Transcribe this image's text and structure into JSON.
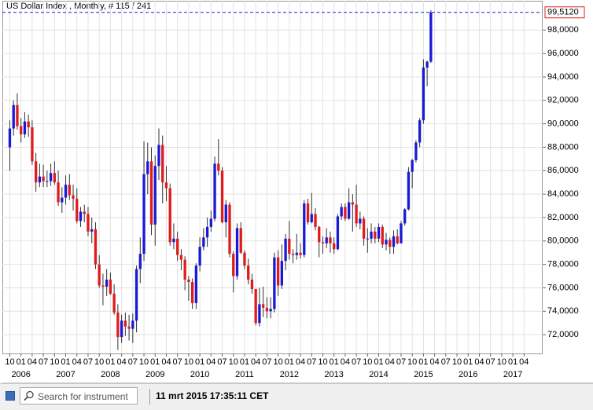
{
  "chart_data": {
    "type": "candlestick",
    "title": "US Dollar Index , Monthly, # 115 / 241",
    "x": [
      "2005-10",
      "2005-11",
      "2005-12",
      "2006-01",
      "2006-02",
      "2006-03",
      "2006-04",
      "2006-05",
      "2006-06",
      "2006-07",
      "2006-08",
      "2006-09",
      "2006-10",
      "2006-11",
      "2006-12",
      "2007-01",
      "2007-02",
      "2007-03",
      "2007-04",
      "2007-05",
      "2007-06",
      "2007-07",
      "2007-08",
      "2007-09",
      "2007-10",
      "2007-11",
      "2007-12",
      "2008-01",
      "2008-02",
      "2008-03",
      "2008-04",
      "2008-05",
      "2008-06",
      "2008-07",
      "2008-08",
      "2008-09",
      "2008-10",
      "2008-11",
      "2008-12",
      "2009-01",
      "2009-02",
      "2009-03",
      "2009-04",
      "2009-05",
      "2009-06",
      "2009-07",
      "2009-08",
      "2009-09",
      "2009-10",
      "2009-11",
      "2009-12",
      "2010-01",
      "2010-02",
      "2010-03",
      "2010-04",
      "2010-05",
      "2010-06",
      "2010-07",
      "2010-08",
      "2010-09",
      "2010-10",
      "2010-11",
      "2010-12",
      "2011-01",
      "2011-02",
      "2011-03",
      "2011-04",
      "2011-05",
      "2011-06",
      "2011-07",
      "2011-08",
      "2011-09",
      "2011-10",
      "2011-11",
      "2011-12",
      "2012-01",
      "2012-02",
      "2012-03",
      "2012-04",
      "2012-05",
      "2012-06",
      "2012-07",
      "2012-08",
      "2012-09",
      "2012-10",
      "2012-11",
      "2012-12",
      "2013-01",
      "2013-02",
      "2013-03",
      "2013-04",
      "2013-05",
      "2013-06",
      "2013-07",
      "2013-08",
      "2013-09",
      "2013-10",
      "2013-11",
      "2013-12",
      "2014-01",
      "2014-02",
      "2014-03",
      "2014-04",
      "2014-05",
      "2014-06",
      "2014-07",
      "2014-08",
      "2014-09",
      "2014-10",
      "2014-11",
      "2014-12",
      "2015-01",
      "2015-02",
      "2015-03"
    ],
    "open": [
      88.0,
      89.6,
      91.6,
      89.8,
      89.1,
      90.2,
      89.7,
      86.8,
      85.0,
      85.5,
      85.1,
      85.1,
      85.8,
      85.0,
      83.3,
      83.7,
      84.8,
      83.9,
      83.6,
      81.7,
      82.5,
      82.3,
      80.8,
      81.0,
      78.0,
      76.2,
      76.1,
      76.7,
      75.5,
      73.9,
      71.8,
      73.2,
      72.7,
      72.5,
      73.2,
      77.6,
      78.9,
      85.7,
      86.8,
      81.4,
      86.4,
      88.2,
      85.0,
      84.5,
      79.9,
      80.2,
      78.8,
      78.4,
      76.7,
      76.5,
      74.7,
      77.9,
      79.5,
      80.3,
      81.2,
      81.9,
      86.6,
      86.0,
      81.6,
      83.1,
      78.9,
      77.0,
      81.1,
      79.0,
      77.9,
      76.7,
      75.9,
      73.0,
      74.6,
      74.3,
      74.0,
      74.2,
      78.6,
      76.2,
      78.3,
      80.2,
      78.9,
      78.8,
      79.0,
      78.8,
      83.2,
      81.6,
      82.3,
      81.2,
      79.9,
      79.8,
      80.3,
      79.8,
      79.3,
      82.1,
      82.9,
      81.9,
      83.3,
      83.1,
      81.5,
      81.9,
      80.2,
      80.2,
      80.8,
      80.2,
      81.2,
      79.7,
      80.1,
      79.5,
      80.4,
      79.8,
      81.5,
      82.7,
      85.9,
      86.9,
      88.4,
      90.3,
      94.8,
      95.3
    ],
    "high": [
      90.3,
      92.0,
      92.6,
      90.5,
      91.0,
      90.8,
      90.3,
      87.5,
      86.6,
      86.5,
      86.0,
      86.6,
      86.8,
      86.0,
      84.6,
      85.6,
      85.7,
      84.8,
      84.5,
      82.9,
      83.1,
      82.9,
      82.0,
      81.6,
      78.8,
      77.2,
      77.6,
      77.3,
      76.3,
      74.6,
      73.7,
      73.9,
      73.7,
      73.8,
      77.9,
      80.3,
      88.5,
      88.4,
      88.0,
      87.3,
      89.6,
      89.0,
      86.4,
      84.9,
      81.5,
      80.8,
      79.3,
      78.7,
      77.0,
      76.8,
      78.1,
      80.3,
      81.1,
      82.0,
      82.6,
      87.2,
      88.7,
      86.3,
      83.5,
      83.3,
      79.1,
      81.5,
      81.6,
      79.2,
      78.5,
      77.2,
      75.9,
      76.0,
      76.1,
      75.2,
      75.2,
      79.0,
      79.2,
      79.7,
      80.6,
      81.7,
      79.3,
      80.6,
      79.8,
      83.5,
      83.6,
      84.1,
      82.8,
      81.3,
      80.4,
      81.1,
      80.8,
      80.3,
      82.3,
      83.2,
      83.2,
      84.5,
      84.0,
      84.8,
      82.5,
      82.1,
      81.1,
      81.5,
      81.2,
      81.5,
      81.4,
      80.7,
      80.3,
      80.9,
      81.0,
      81.7,
      82.8,
      86.3,
      87.0,
      88.6,
      90.5,
      95.5,
      95.4,
      99.7
    ],
    "low": [
      86.0,
      89.0,
      89.5,
      88.4,
      88.8,
      88.9,
      86.5,
      84.2,
      84.6,
      84.6,
      84.6,
      84.7,
      84.8,
      83.0,
      82.4,
      83.1,
      83.5,
      82.6,
      81.5,
      81.2,
      81.6,
      80.4,
      79.8,
      77.6,
      76.0,
      74.5,
      75.3,
      75.4,
      73.7,
      70.7,
      71.3,
      71.9,
      71.5,
      71.3,
      72.2,
      76.4,
      78.3,
      84.0,
      80.5,
      79.6,
      85.2,
      83.2,
      83.4,
      79.6,
      79.3,
      78.3,
      77.5,
      75.8,
      74.9,
      74.2,
      74.2,
      77.4,
      79.2,
      79.5,
      80.8,
      81.7,
      85.6,
      81.5,
      80.3,
      78.6,
      75.6,
      76.7,
      78.9,
      77.6,
      76.3,
      75.5,
      72.8,
      72.7,
      73.5,
      73.4,
      73.4,
      73.9,
      75.3,
      75.9,
      77.5,
      78.4,
      78.1,
      78.4,
      78.5,
      78.6,
      81.4,
      81.5,
      80.9,
      78.6,
      78.9,
      79.4,
      79.0,
      78.9,
      79.2,
      81.8,
      81.7,
      81.8,
      80.8,
      81.2,
      81.0,
      79.6,
      79.0,
      79.8,
      79.8,
      79.9,
      79.4,
      79.2,
      78.9,
      78.9,
      79.7,
      79.8,
      81.3,
      82.6,
      84.5,
      86.7,
      88.0,
      90.0,
      93.2,
      95.2
    ],
    "close": [
      89.6,
      91.6,
      89.8,
      89.1,
      90.2,
      89.7,
      86.8,
      85.0,
      85.5,
      85.1,
      85.1,
      85.8,
      85.0,
      83.3,
      83.7,
      84.8,
      83.9,
      83.6,
      81.7,
      82.5,
      82.3,
      80.8,
      81.0,
      78.0,
      76.2,
      76.1,
      76.7,
      75.5,
      73.9,
      71.8,
      73.2,
      72.7,
      72.5,
      73.2,
      77.6,
      78.9,
      85.7,
      86.8,
      81.4,
      86.4,
      88.2,
      85.0,
      84.5,
      79.9,
      80.2,
      78.8,
      78.4,
      76.7,
      76.5,
      74.7,
      77.9,
      79.5,
      80.3,
      81.2,
      81.9,
      86.6,
      86.0,
      81.6,
      83.1,
      78.9,
      77.0,
      81.1,
      79.0,
      77.9,
      76.7,
      75.9,
      73.0,
      74.6,
      74.3,
      74.0,
      74.2,
      78.6,
      76.2,
      78.3,
      80.2,
      78.9,
      78.8,
      79.0,
      78.8,
      83.2,
      81.6,
      82.3,
      81.2,
      79.9,
      79.8,
      80.3,
      79.8,
      79.3,
      82.1,
      82.9,
      81.9,
      83.3,
      83.1,
      81.5,
      81.9,
      80.2,
      80.2,
      80.8,
      80.2,
      81.2,
      79.7,
      80.1,
      79.5,
      80.4,
      79.8,
      81.5,
      82.7,
      85.9,
      86.9,
      88.4,
      90.3,
      94.8,
      95.3,
      99.512
    ],
    "up_color": "#1a1ad6",
    "down_color": "#e01b1b",
    "current": {
      "value": 99.512,
      "label": "99,5120"
    },
    "current_color": "#1a1ad6",
    "ylim": [
      70.4,
      100.5
    ],
    "yticks": [
      {
        "value": 72,
        "label": "72,0000"
      },
      {
        "value": 74,
        "label": "74,0000"
      },
      {
        "value": 76,
        "label": "76,0000"
      },
      {
        "value": 78,
        "label": "78,0000"
      },
      {
        "value": 80,
        "label": "80,0000"
      },
      {
        "value": 82,
        "label": "82,0000"
      },
      {
        "value": 84,
        "label": "84,0000"
      },
      {
        "value": 86,
        "label": "86,0000"
      },
      {
        "value": 88,
        "label": "88,0000"
      },
      {
        "value": 90,
        "label": "90,0000"
      },
      {
        "value": 92,
        "label": "92,0000"
      },
      {
        "value": 94,
        "label": "94,0000"
      },
      {
        "value": 96,
        "label": "96,0000"
      },
      {
        "value": 98,
        "label": "98,0000"
      }
    ],
    "xlim": [
      "2005-08",
      "2017-09"
    ],
    "month_ticks": [
      {
        "value": "2005-10",
        "label": "10"
      },
      {
        "value": "2006-01",
        "label": "01"
      },
      {
        "value": "2006-04",
        "label": "04"
      },
      {
        "value": "2006-07",
        "label": "07"
      },
      {
        "value": "2006-10",
        "label": "10"
      },
      {
        "value": "2007-01",
        "label": "01"
      },
      {
        "value": "2007-04",
        "label": "04"
      },
      {
        "value": "2007-07",
        "label": "07"
      },
      {
        "value": "2007-10",
        "label": "10"
      },
      {
        "value": "2008-01",
        "label": "01"
      },
      {
        "value": "2008-04",
        "label": "04"
      },
      {
        "value": "2008-07",
        "label": "07"
      },
      {
        "value": "2008-10",
        "label": "10"
      },
      {
        "value": "2009-01",
        "label": "01"
      },
      {
        "value": "2009-04",
        "label": "04"
      },
      {
        "value": "2009-07",
        "label": "07"
      },
      {
        "value": "2009-10",
        "label": "10"
      },
      {
        "value": "2010-01",
        "label": "01"
      },
      {
        "value": "2010-04",
        "label": "04"
      },
      {
        "value": "2010-07",
        "label": "07"
      },
      {
        "value": "2010-10",
        "label": "10"
      },
      {
        "value": "2011-01",
        "label": "01"
      },
      {
        "value": "2011-04",
        "label": "04"
      },
      {
        "value": "2011-07",
        "label": "07"
      },
      {
        "value": "2011-10",
        "label": "10"
      },
      {
        "value": "2012-01",
        "label": "01"
      },
      {
        "value": "2012-04",
        "label": "04"
      },
      {
        "value": "2012-07",
        "label": "07"
      },
      {
        "value": "2012-10",
        "label": "10"
      },
      {
        "value": "2013-01",
        "label": "01"
      },
      {
        "value": "2013-04",
        "label": "04"
      },
      {
        "value": "2013-07",
        "label": "07"
      },
      {
        "value": "2013-10",
        "label": "10"
      },
      {
        "value": "2014-01",
        "label": "01"
      },
      {
        "value": "2014-04",
        "label": "04"
      },
      {
        "value": "2014-07",
        "label": "07"
      },
      {
        "value": "2014-10",
        "label": "10"
      },
      {
        "value": "2015-01",
        "label": "01"
      },
      {
        "value": "2015-04",
        "label": "04"
      },
      {
        "value": "2015-07",
        "label": "07"
      },
      {
        "value": "2015-10",
        "label": "10"
      },
      {
        "value": "2016-01",
        "label": "01"
      },
      {
        "value": "2016-04",
        "label": "04"
      },
      {
        "value": "2016-07",
        "label": "07"
      },
      {
        "value": "2016-10",
        "label": "10"
      },
      {
        "value": "2017-01",
        "label": "01"
      },
      {
        "value": "2017-04",
        "label": "04"
      }
    ],
    "year_ticks": [
      {
        "value": "2006-01",
        "label": "2006"
      },
      {
        "value": "2007-01",
        "label": "2007"
      },
      {
        "value": "2008-01",
        "label": "2008"
      },
      {
        "value": "2009-01",
        "label": "2009"
      },
      {
        "value": "2010-01",
        "label": "2010"
      },
      {
        "value": "2011-01",
        "label": "2011"
      },
      {
        "value": "2012-01",
        "label": "2012"
      },
      {
        "value": "2013-01",
        "label": "2013"
      },
      {
        "value": "2014-01",
        "label": "2014"
      },
      {
        "value": "2015-01",
        "label": "2015"
      },
      {
        "value": "2016-01",
        "label": "2016"
      },
      {
        "value": "2017-01",
        "label": "2017"
      }
    ],
    "grid": true
  },
  "toolbar": {
    "search_placeholder": "Search for instrument",
    "timestamp": "11 mrt 2015 17:35:11 CET"
  }
}
